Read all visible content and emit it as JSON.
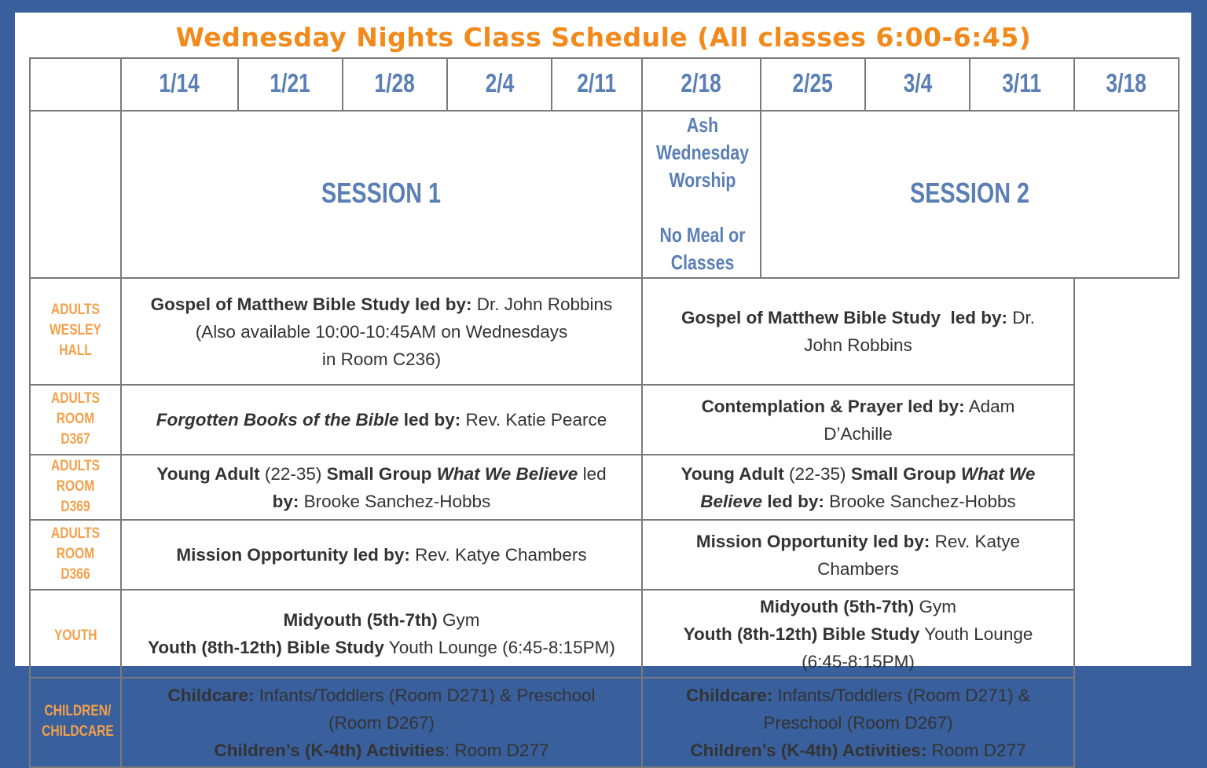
{
  "title": "Wednesday Nights Class Schedule (All classes 6:00-6:45)",
  "colors": {
    "border": "#395f9c",
    "title": "#f28a1b",
    "heading_blue": "#5a7fb5",
    "label_orange": "#f5a04a"
  },
  "dates": [
    "1/14",
    "1/21",
    "1/28",
    "2/4",
    "2/11",
    "2/18",
    "2/25",
    "3/4",
    "3/11",
    "3/18"
  ],
  "session1": "SESSION 1",
  "session2": "SESSION 2",
  "middle": {
    "line1": "Ash",
    "line2": "Wednesday",
    "line3": "Worship",
    "line4": "No Meal or",
    "line5": "Classes"
  },
  "rows": [
    {
      "label": [
        "ADULTS",
        "WESLEY HALL"
      ],
      "s1": [
        [
          {
            "t": "Gospel of Matthew Bible Study led by:",
            "b": 1
          },
          {
            "t": " Dr. John Robbins"
          }
        ],
        [
          {
            "t": "(Also available 10:00-10:45AM on Wednesdays"
          }
        ],
        [
          {
            "t": "in Room C236)"
          }
        ]
      ],
      "s2": [
        [
          {
            "t": "Gospel of Matthew Bible Study  led by:",
            "b": 1
          },
          {
            "t": " Dr."
          }
        ],
        [
          {
            "t": "John Robbins"
          }
        ]
      ]
    },
    {
      "label": [
        "ADULTS",
        "ROOM D367"
      ],
      "s1": [
        [
          {
            "t": "Forgotten Books of the Bible",
            "b": 1,
            "i": 1
          },
          {
            "t": " led by:",
            "b": 1
          },
          {
            "t": " Rev. Katie Pearce"
          }
        ]
      ],
      "s2": [
        [
          {
            "t": "Contemplation & Prayer led by:",
            "b": 1
          },
          {
            "t": " Adam"
          }
        ],
        [
          {
            "t": "D’Achille"
          }
        ]
      ]
    },
    {
      "label": [
        "ADULTS",
        "ROOM D369"
      ],
      "s1": [
        [
          {
            "t": "Young Adult",
            "b": 1
          },
          {
            "t": " (22-35) "
          },
          {
            "t": "Small Group ",
            "b": 1
          },
          {
            "t": "What We Believe",
            "b": 1,
            "i": 1
          },
          {
            "t": " led"
          }
        ],
        [
          {
            "t": "by:",
            "b": 1
          },
          {
            "t": " Brooke Sanchez-Hobbs"
          }
        ]
      ],
      "s2": [
        [
          {
            "t": "Young Adult",
            "b": 1
          },
          {
            "t": " (22-35) "
          },
          {
            "t": "Small Group ",
            "b": 1
          },
          {
            "t": "What We",
            "b": 1,
            "i": 1
          }
        ],
        [
          {
            "t": "Believe",
            "b": 1,
            "i": 1
          },
          {
            "t": " led by:",
            "b": 1
          },
          {
            "t": " Brooke Sanchez-Hobbs"
          }
        ]
      ]
    },
    {
      "label": [
        "ADULTS",
        "ROOM D366"
      ],
      "s1": [
        [
          {
            "t": "Mission Opportunity led by:",
            "b": 1
          },
          {
            "t": " Rev. Katye Chambers"
          }
        ]
      ],
      "s2": [
        [
          {
            "t": "Mission Opportunity led by:",
            "b": 1
          },
          {
            "t": " Rev. Katye"
          }
        ],
        [
          {
            "t": "Chambers"
          }
        ]
      ]
    },
    {
      "label": [
        "YOUTH"
      ],
      "s1": [
        [
          {
            "t": "Midyouth (5th-7th)",
            "b": 1
          },
          {
            "t": " Gym"
          }
        ],
        [
          {
            "t": "Youth (8th-12th) Bible Study",
            "b": 1
          },
          {
            "t": " Youth Lounge (6:45-8:15PM)"
          }
        ]
      ],
      "s2": [
        [
          {
            "t": "Midyouth (5th-7th)",
            "b": 1
          },
          {
            "t": " Gym"
          }
        ],
        [
          {
            "t": "Youth (8th-12th) Bible Study",
            "b": 1
          },
          {
            "t": " Youth Lounge"
          }
        ],
        [
          {
            "t": "(6:45-8:15PM)"
          }
        ]
      ]
    },
    {
      "label": [
        "CHILDREN/",
        "CHILDCARE"
      ],
      "s1": [
        [
          {
            "t": "Childcare:",
            "b": 1
          },
          {
            "t": " Infants/Toddlers (Room D271) & Preschool"
          }
        ],
        [
          {
            "t": "(Room D267)"
          }
        ],
        [
          {
            "t": "Children’s (K-4th) Activities",
            "b": 1
          },
          {
            "t": ": Room D277"
          }
        ]
      ],
      "s2": [
        [
          {
            "t": "Childcare:",
            "b": 1
          },
          {
            "t": " Infants/Toddlers (Room D271) &"
          }
        ],
        [
          {
            "t": "Preschool (Room D267)"
          }
        ],
        [
          {
            "t": "Children’s (K-4th) Activities:",
            "b": 1
          },
          {
            "t": " Room D277"
          }
        ]
      ]
    }
  ]
}
